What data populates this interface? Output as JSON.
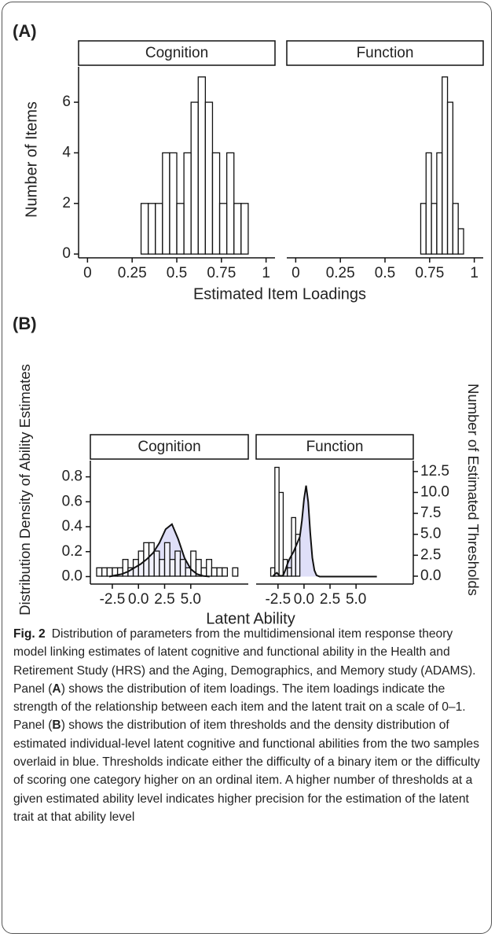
{
  "panels": [
    {
      "label": "(A)",
      "xlabel": "Estimated Item Loadings",
      "ylabel": "Number of Items"
    },
    {
      "label": "(B)",
      "xlabel": "Latent Ability",
      "ylabel": "Distribution Density of Ability Estimates",
      "y2label": "Number of Estimated Thresholds"
    }
  ],
  "chart_data": [
    {
      "type": "histogram",
      "facet": "Cognition",
      "color": "#ffffff",
      "bins": [
        0.3,
        0.34,
        0.38,
        0.42,
        0.46,
        0.5,
        0.54,
        0.58,
        0.62,
        0.66,
        0.7,
        0.74,
        0.78,
        0.82,
        0.86,
        0.9
      ],
      "values": [
        2,
        2,
        2,
        4,
        4,
        2,
        4,
        6,
        7,
        6,
        4,
        2,
        4,
        2,
        2
      ],
      "xlim": [
        -0.05,
        1.05
      ],
      "xticks": [
        0,
        0.25,
        0.5,
        0.75,
        1
      ],
      "ylim": [
        -0.15,
        7.4
      ],
      "yticks": [
        0,
        2,
        4,
        6
      ]
    },
    {
      "type": "histogram",
      "facet": "Function",
      "color": "#ffffff",
      "bins": [
        0.7,
        0.73,
        0.76,
        0.79,
        0.82,
        0.85,
        0.88,
        0.91,
        0.94
      ],
      "values": [
        2,
        4,
        2,
        4,
        7,
        6,
        2,
        1
      ],
      "xlim": [
        -0.05,
        1.05
      ],
      "xticks": [
        0,
        0.25,
        0.5,
        0.75,
        1
      ],
      "ylim": [
        -0.15,
        7.4
      ]
    },
    {
      "type": "histogram",
      "facet": "Cognition",
      "color": "#ffffff",
      "axis": "y2",
      "bins": [
        -4.0,
        -3.5,
        -3.0,
        -2.5,
        -2.0,
        -1.5,
        -1.0,
        -0.5,
        0.0,
        0.5,
        1.0,
        1.5,
        2.0,
        2.5,
        3.0,
        3.5,
        4.0,
        4.5,
        5.0,
        5.5,
        6.0,
        6.5,
        7.0,
        7.5,
        8.0,
        8.5,
        9.0,
        9.5
      ],
      "values": [
        1,
        1,
        1,
        1,
        1,
        2,
        1,
        2,
        3,
        4,
        4,
        3,
        2,
        4,
        2,
        3,
        2,
        1,
        3,
        2,
        1,
        2,
        1,
        1,
        1,
        0,
        1
      ],
      "density_x": [
        -2.8,
        -2.2,
        -1.6,
        -1.0,
        -0.4,
        0.2,
        0.8,
        1.4,
        2.0,
        2.6,
        3.2,
        3.8,
        4.4,
        5.0,
        5.6,
        6.2,
        6.8
      ],
      "density": [
        0,
        0.01,
        0.02,
        0.04,
        0.07,
        0.1,
        0.14,
        0.19,
        0.27,
        0.38,
        0.42,
        0.3,
        0.15,
        0.06,
        0.02,
        0.005,
        0
      ],
      "density_color": "#dcdcf7",
      "xlim": [
        -4.6,
        10.5
      ],
      "xticks": [
        -2.5,
        {
          "value": 0,
          "label": "0.0"
        },
        2.5,
        {
          "value": 5,
          "label": "5.0"
        }
      ],
      "ylim": [
        -0.06,
        0.93
      ],
      "yticks": [
        {
          "value": 0,
          "label": "0.0"
        },
        0.2,
        0.4,
        0.6,
        0.8
      ],
      "y2lim": [
        -0.94,
        13.8
      ]
    },
    {
      "type": "histogram",
      "facet": "Function",
      "color": "#ffffff",
      "axis": "y2",
      "bins": [
        -3.2,
        -2.8,
        -2.4,
        -2.0,
        -1.6,
        -1.2,
        -0.8,
        -0.4
      ],
      "values": [
        1,
        13,
        10,
        2,
        1,
        7,
        5
      ],
      "density_x": [
        -3.0,
        -2.8,
        -2.6,
        -2.4,
        -2.2,
        -2.0,
        -1.8,
        -1.6,
        -1.4,
        -1.2,
        -1.0,
        -0.8,
        -0.6,
        -0.4,
        -0.2,
        0.0,
        0.2,
        0.4,
        0.6,
        0.8,
        1.0,
        1.2,
        1.5,
        2.0,
        3.0,
        4.0,
        5.0,
        6.0,
        7.0
      ],
      "density": [
        0,
        0.02,
        0.03,
        0.01,
        0.005,
        0.01,
        0.05,
        0.1,
        0.14,
        0.17,
        0.2,
        0.24,
        0.28,
        0.32,
        0.45,
        0.62,
        0.73,
        0.6,
        0.35,
        0.15,
        0.05,
        0.01,
        0,
        0,
        0,
        0,
        0,
        0,
        0
      ],
      "density_color": "#dcdcf7",
      "xlim": [
        -4.6,
        10.5
      ],
      "xticks": [
        -2.5,
        {
          "value": 0,
          "label": "0.0"
        },
        2.5,
        {
          "value": 5,
          "label": "5.0"
        }
      ],
      "ylim": [
        -0.06,
        0.93
      ],
      "y2lim": [
        -0.94,
        13.8
      ],
      "y2ticks": [
        {
          "value": 0,
          "label": "0.0"
        },
        2.5,
        {
          "value": 5,
          "label": "5.0"
        },
        7.5,
        {
          "value": 10,
          "label": "10.0"
        },
        12.5
      ]
    }
  ],
  "caption": {
    "label": "Fig. 2",
    "parts": [
      "Distribution of parameters from the multidimensional item response theory model linking estimates of latent cognitive and functional ability in the Health and Retirement Study (HRS) and the Aging, Demographics, and Memory study (ADAMS). Panel (",
      "A",
      ") shows the distribution of item loadings. The item loadings indicate the strength of the relationship between each item and the latent trait on a scale of 0–1. Panel (",
      "B",
      ") shows the distribution of item thresholds and the density distribution of estimated individual-level latent cognitive and functional abilities from the two samples overlaid in blue. Thresholds indicate either the difficulty of a binary item or the difficulty of scoring one category higher on an ordinal item. A higher number of thresholds at a given estimated ability level indicates higher precision for the estimation of the latent trait at that ability level"
    ]
  }
}
